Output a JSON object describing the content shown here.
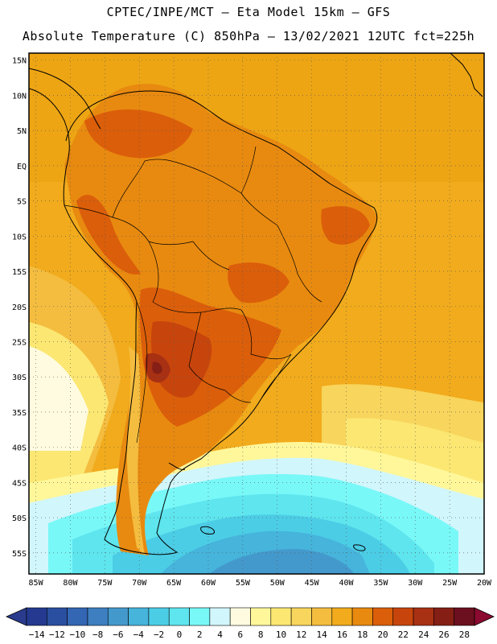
{
  "header": {
    "line1": "CPTEC/INPE/MCT –   Eta Model 15km – GFS",
    "line2": "Absolute Temperature (C) 850hPa – 13/02/2021 12UTC fct=225h"
  },
  "map": {
    "lat_labels": [
      "15N",
      "10N",
      "5N",
      "EQ",
      "5S",
      "10S",
      "15S",
      "20S",
      "25S",
      "30S",
      "35S",
      "40S",
      "45S",
      "50S",
      "55S"
    ],
    "lon_labels": [
      "85W",
      "80W",
      "75W",
      "70W",
      "65W",
      "60W",
      "55W",
      "50W",
      "45W",
      "40W",
      "35W",
      "30W",
      "25W",
      "20W"
    ],
    "lat_range": [
      -58,
      16
    ],
    "lon_range": [
      -86,
      -20
    ]
  },
  "colorbar": {
    "labels": [
      "-14",
      "-12",
      "-10",
      "-8",
      "-6",
      "-4",
      "-2",
      "0",
      "2",
      "4",
      "6",
      "8",
      "10",
      "12",
      "14",
      "16",
      "18",
      "20",
      "22",
      "24",
      "26",
      "28"
    ],
    "colors": [
      "#24398f",
      "#2a4fa0",
      "#3366b3",
      "#3d7fc0",
      "#4499cc",
      "#46b4db",
      "#4ccde6",
      "#5ee5ee",
      "#79f8f8",
      "#d1f6fb",
      "#fffbe0",
      "#fff79a",
      "#fbe772",
      "#f8d55c",
      "#f4bd3f",
      "#f1ab1c",
      "#e88a10",
      "#db5e0a",
      "#c7450c",
      "#a83013",
      "#851f15",
      "#6c0f1f"
    ],
    "low_end_color": "#2a3b8d",
    "high_end_color": "#8b0a30"
  }
}
